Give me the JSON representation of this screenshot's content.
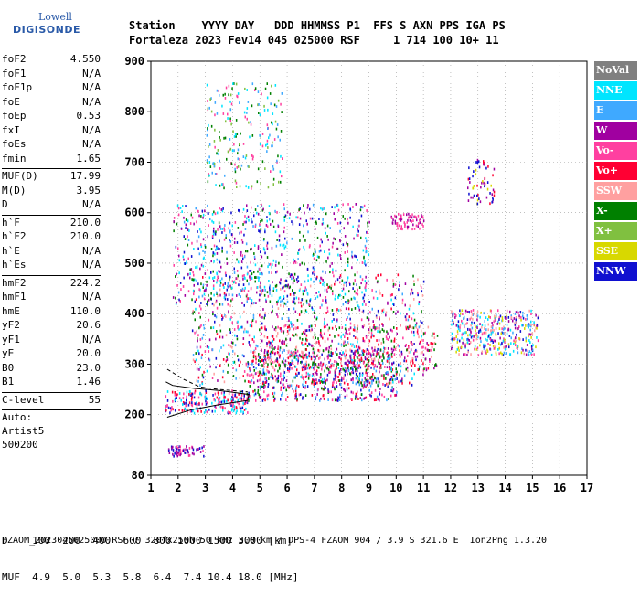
{
  "logo": {
    "line1": "Lowell",
    "line2": "DIGISONDE"
  },
  "header": {
    "line1": "Station    YYYY DAY   DDD HHMMSS P1  FFS S AXN PPS IGA PS",
    "line2": "Fortaleza 2023 Fev14 045 025000 RSF     1 714 100 10+ 11"
  },
  "params": [
    {
      "k": "foF2",
      "v": "4.550"
    },
    {
      "k": "foF1",
      "v": "N/A"
    },
    {
      "k": "foF1p",
      "v": "N/A"
    },
    {
      "k": "foE",
      "v": "N/A"
    },
    {
      "k": "foEp",
      "v": "0.53"
    },
    {
      "k": "fxI",
      "v": "N/A"
    },
    {
      "k": "foEs",
      "v": "N/A"
    },
    {
      "k": "fmin",
      "v": "1.65"
    },
    {
      "sep": true
    },
    {
      "k": "MUF(D)",
      "v": "17.99"
    },
    {
      "k": "M(D)",
      "v": "3.95"
    },
    {
      "k": "D",
      "v": "N/A"
    },
    {
      "sep": true
    },
    {
      "k": "h`F",
      "v": "210.0"
    },
    {
      "k": "h`F2",
      "v": "210.0"
    },
    {
      "k": "h`E",
      "v": "N/A"
    },
    {
      "k": "h`Es",
      "v": "N/A"
    },
    {
      "sep": true
    },
    {
      "k": "hmF2",
      "v": "224.2"
    },
    {
      "k": "hmF1",
      "v": "N/A"
    },
    {
      "k": "hmE",
      "v": "110.0"
    },
    {
      "k": "yF2",
      "v": "20.6"
    },
    {
      "k": "yF1",
      "v": "N/A"
    },
    {
      "k": "yE",
      "v": "20.0"
    },
    {
      "k": "B0",
      "v": "23.0"
    },
    {
      "k": "B1",
      "v": "1.46"
    },
    {
      "sep": true
    },
    {
      "k": "C-level",
      "v": "55"
    },
    {
      "sep": true
    }
  ],
  "auto": {
    "line1": "Auto:",
    "line2": "Artist5",
    "line3": "500200"
  },
  "legend": [
    {
      "label": "NoVal",
      "color": "#808080"
    },
    {
      "label": "NNE",
      "color": "#00e5ff"
    },
    {
      "label": "E",
      "color": "#3fa9ff"
    },
    {
      "label": "W",
      "color": "#a000a0"
    },
    {
      "label": "Vo-",
      "color": "#ff40a0"
    },
    {
      "label": "Vo+",
      "color": "#ff0033"
    },
    {
      "label": "SSW",
      "color": "#ffa0a0"
    },
    {
      "label": "X-",
      "color": "#008000"
    },
    {
      "label": "X+",
      "color": "#80c040"
    },
    {
      "label": "SSE",
      "color": "#d8d800"
    },
    {
      "label": "NNW",
      "color": "#1010d0"
    }
  ],
  "chart_data": {
    "type": "scatter",
    "title": "",
    "xlabel": "",
    "ylabel": "",
    "xlim": [
      1,
      17
    ],
    "ylim": [
      80,
      900
    ],
    "xticks": [
      1,
      2,
      3,
      4,
      5,
      6,
      7,
      8,
      9,
      10,
      11,
      12,
      13,
      14,
      15,
      16,
      17
    ],
    "yticks": [
      80,
      200,
      300,
      400,
      500,
      600,
      700,
      800,
      900
    ],
    "grid": "dotted",
    "clusters": [
      {
        "name": "F-trace low",
        "f": [
          1.5,
          4.6
        ],
        "h": [
          205,
          250
        ],
        "colors": [
          "#ff0033",
          "#ff40a0",
          "#00e5ff",
          "#1010d0"
        ],
        "n": 220
      },
      {
        "name": "F-trace",
        "f": [
          4.5,
          10
        ],
        "h": [
          230,
          330
        ],
        "colors": [
          "#ff0033",
          "#ff40a0",
          "#008000",
          "#a000a0",
          "#3fa9ff",
          "#1010d0"
        ],
        "n": 600
      },
      {
        "name": "F-spread",
        "f": [
          2.5,
          11
        ],
        "h": [
          260,
          480
        ],
        "colors": [
          "#a000a0",
          "#ff0033",
          "#008000",
          "#3fa9ff",
          "#00e5ff",
          "#ffa0a0",
          "#1010d0",
          "#ff40a0"
        ],
        "n": 900
      },
      {
        "name": "F-upper",
        "f": [
          5,
          11.5
        ],
        "h": [
          290,
          380
        ],
        "colors": [
          "#ff0033",
          "#a000a0",
          "#ff40a0",
          "#ffa0a0",
          "#008000"
        ],
        "n": 350
      },
      {
        "name": "2F-trace",
        "f": [
          1.8,
          9
        ],
        "h": [
          420,
          620
        ],
        "colors": [
          "#3fa9ff",
          "#00e5ff",
          "#008000",
          "#ff40a0",
          "#a000a0",
          "#1010d0"
        ],
        "n": 700
      },
      {
        "name": "3F-trace",
        "f": [
          3,
          5.8
        ],
        "h": [
          650,
          860
        ],
        "colors": [
          "#3fa9ff",
          "#00e5ff",
          "#008000",
          "#80c040",
          "#ff40a0"
        ],
        "n": 220
      },
      {
        "name": "high-f spread",
        "f": [
          12,
          15.2
        ],
        "h": [
          320,
          410
        ],
        "colors": [
          "#1010d0",
          "#00e5ff",
          "#a000a0",
          "#3fa9ff",
          "#ff40a0",
          "#ffa0a0",
          "#d8d800"
        ],
        "n": 400
      },
      {
        "name": "high-f 2",
        "f": [
          12.6,
          13.6
        ],
        "h": [
          620,
          710
        ],
        "colors": [
          "#d8d800",
          "#a000a0",
          "#ff0033",
          "#1010d0"
        ],
        "n": 60
      },
      {
        "name": "10 MHz band",
        "f": [
          9.8,
          11
        ],
        "h": [
          570,
          600
        ],
        "colors": [
          "#a000a0",
          "#ff40a0"
        ],
        "n": 70
      },
      {
        "name": "E-region",
        "f": [
          1.6,
          3
        ],
        "h": [
          120,
          140
        ],
        "colors": [
          "#a000a0",
          "#1010d0",
          "#ff40a0"
        ],
        "n": 60
      }
    ],
    "profile_line": [
      [
        1.6,
        195
      ],
      [
        2.5,
        210
      ],
      [
        3.5,
        220
      ],
      [
        4.55,
        228
      ],
      [
        4.6,
        240
      ],
      [
        3.5,
        248
      ],
      [
        2.6,
        252
      ],
      [
        1.8,
        258
      ],
      [
        1.55,
        265
      ]
    ],
    "dashed_line": [
      [
        1.6,
        290
      ],
      [
        2.2,
        270
      ],
      [
        2.8,
        255
      ],
      [
        3.5,
        250
      ],
      [
        4.55,
        245
      ]
    ]
  },
  "footer": {
    "line1": "D    100  200  400  600  800 1000 1500 3000 [km]",
    "line2": "MUF  4.9  5.0  5.3  5.8  6.4  7.4 10.4 18.0 [MHz]",
    "line3": "FZAOM_2023045025000.RSF / 320fx256h 50 kHz 5.0 km / DPS-4 FZAOM 904 / 3.9 S 321.6 E  Ion2Png 1.3.20"
  }
}
